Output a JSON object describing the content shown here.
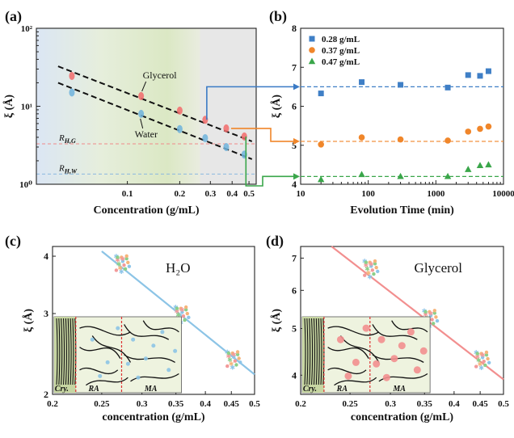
{
  "panels": [
    {
      "label": "(a)",
      "chart_data": {
        "type": "scatter",
        "xscale": "log",
        "yscale": "log",
        "xlim": [
          0.03,
          0.55
        ],
        "ylim": [
          1,
          100
        ],
        "xlabel": "Concentration (g/mL)",
        "ylabel": "ξ (Å)",
        "xticks": [
          0.1,
          0.2,
          0.3,
          0.4,
          0.5
        ],
        "xticklabels": [
          "0.1",
          "0.2",
          "0.3",
          "0.4",
          "0.5"
        ],
        "yticks": [
          1,
          10,
          100
        ],
        "yticklabels": [
          "10⁰",
          "10¹",
          "10²"
        ],
        "series": [
          {
            "name": "Glycerol",
            "color": "#f26b6b",
            "x": [
              0.048,
              0.12,
              0.2,
              0.28,
              0.37,
              0.47
            ],
            "y": [
              24.5,
              13.5,
              8.8,
              6.7,
              5.2,
              4.1
            ]
          },
          {
            "name": "Water",
            "color": "#6fb3dc",
            "x": [
              0.048,
              0.12,
              0.2,
              0.28,
              0.37,
              0.47
            ],
            "y": [
              15.0,
              8.0,
              5.1,
              3.9,
              3.0,
              2.4
            ]
          }
        ],
        "fits": [
          {
            "x": [
              0.04,
              0.52
            ],
            "y": [
              32.5,
              3.55
            ]
          },
          {
            "x": [
              0.04,
              0.52
            ],
            "y": [
              20.0,
              2.1
            ]
          }
        ],
        "reference_lines": [
          {
            "label": "R",
            "sub": "H,G",
            "y": 3.3,
            "color": "#f08a8a"
          },
          {
            "label": "R",
            "sub": "H,W",
            "y": 1.35,
            "color": "#8ab8e0"
          }
        ],
        "regions": [
          {
            "x": [
              0.03,
              0.07
            ],
            "color": "#dbe6f4"
          },
          {
            "x": [
              0.07,
              0.26
            ],
            "color": "#e4edd2"
          },
          {
            "x": [
              0.26,
              0.55
            ],
            "color": "#e7e7e7"
          }
        ],
        "arrows": [
          {
            "from": [
              0.28,
              6.7
            ],
            "to_panel_b_y": 6.5,
            "color": "#3a7ac5"
          },
          {
            "from": [
              0.37,
              5.2
            ],
            "to_panel_b_y": 5.1,
            "color": "#f0862a"
          },
          {
            "from": [
              0.47,
              4.1
            ],
            "to_panel_b_y": 4.2,
            "color": "#3aa64a"
          }
        ]
      }
    },
    {
      "label": "(b)",
      "chart_data": {
        "type": "scatter",
        "xscale": "log",
        "xlim": [
          10,
          10000
        ],
        "ylim": [
          4,
          8
        ],
        "xlabel": "Evolution Time (min)",
        "ylabel": "ξ (Å)",
        "xticks": [
          10,
          100,
          1000,
          10000
        ],
        "xticklabels": [
          "10",
          "100",
          "1000",
          "10000"
        ],
        "yticks": [
          4,
          5,
          6,
          7,
          8
        ],
        "yticklabels": [
          "4",
          "5",
          "6",
          "7",
          "8"
        ],
        "legend_position": "top-left",
        "series": [
          {
            "name": "0.28 g/mL",
            "color": "#3f7fc6",
            "marker": "square",
            "level": 6.5,
            "x": [
              20,
              80,
              300,
              1500,
              3000,
              4500,
              6000
            ],
            "y": [
              6.33,
              6.62,
              6.55,
              6.48,
              6.8,
              6.78,
              6.9
            ]
          },
          {
            "name": "0.37 g/mL",
            "color": "#f0862a",
            "marker": "circle",
            "level": 5.1,
            "x": [
              20,
              80,
              300,
              1500,
              3000,
              4500,
              6000
            ],
            "y": [
              5.02,
              5.2,
              5.15,
              5.12,
              5.35,
              5.42,
              5.48
            ]
          },
          {
            "name": "0.47 g/mL",
            "color": "#3aa64a",
            "marker": "triangle",
            "level": 4.2,
            "x": [
              20,
              80,
              300,
              1500,
              3000,
              4500,
              6000
            ],
            "y": [
              4.12,
              4.25,
              4.2,
              4.2,
              4.38,
              4.48,
              4.5
            ]
          }
        ]
      }
    },
    {
      "label": "(c)",
      "annotation": "H₂O",
      "chart_data": {
        "type": "scatter",
        "xscale": "log",
        "yscale": "log",
        "xlim": [
          0.2,
          0.5
        ],
        "ylim": [
          2,
          4.2
        ],
        "xlabel": "concentration (g/mL)",
        "ylabel": "ξ (Å)",
        "xticks": [
          0.2,
          0.25,
          0.3,
          0.35,
          0.4,
          0.45,
          0.5
        ],
        "xticklabels": [
          "0.2",
          "0.25",
          "0.3",
          "0.35",
          "0.4",
          "0.45",
          "0.5"
        ],
        "yticks": [
          2,
          3,
          4
        ],
        "yticklabels": [
          "2",
          "3",
          "4"
        ],
        "line_color": "#8cc4e6",
        "fit": {
          "x": [
            0.25,
            0.5
          ],
          "y": [
            4.1,
            2.21
          ]
        },
        "clusters": [
          {
            "x": 0.275,
            "y": 3.85
          },
          {
            "x": 0.36,
            "y": 2.98
          },
          {
            "x": 0.455,
            "y": 2.38
          }
        ]
      },
      "inset": {
        "labels": [
          "Cry.",
          "RA",
          "MA"
        ],
        "dot_color": "#8cc4e6"
      }
    },
    {
      "label": "(d)",
      "annotation": "Glycerol",
      "chart_data": {
        "type": "scatter",
        "xscale": "log",
        "yscale": "log",
        "xlim": [
          0.2,
          0.5
        ],
        "ylim": [
          3.65,
          7.4
        ],
        "xlabel": "concentration (g/mL)",
        "ylabel": "ξ (Å)",
        "xticks": [
          0.2,
          0.25,
          0.3,
          0.35,
          0.4,
          0.45,
          0.5
        ],
        "xticklabels": [
          "0.2",
          "0.25",
          "0.3",
          "0.35",
          "0.4",
          "0.45",
          "0.5"
        ],
        "yticks": [
          4,
          5,
          6,
          7
        ],
        "yticklabels": [
          "4",
          "5",
          "6",
          "7"
        ],
        "line_color": "#f28f8f",
        "fit": {
          "x": [
            0.23,
            0.5
          ],
          "y": [
            7.4,
            3.92
          ]
        },
        "clusters": [
          {
            "x": 0.275,
            "y": 6.65
          },
          {
            "x": 0.36,
            "y": 5.25
          },
          {
            "x": 0.455,
            "y": 4.3
          }
        ]
      },
      "inset": {
        "labels": [
          "Cry.",
          "RA",
          "MA"
        ],
        "dot_color": "#f28f8f"
      }
    }
  ]
}
